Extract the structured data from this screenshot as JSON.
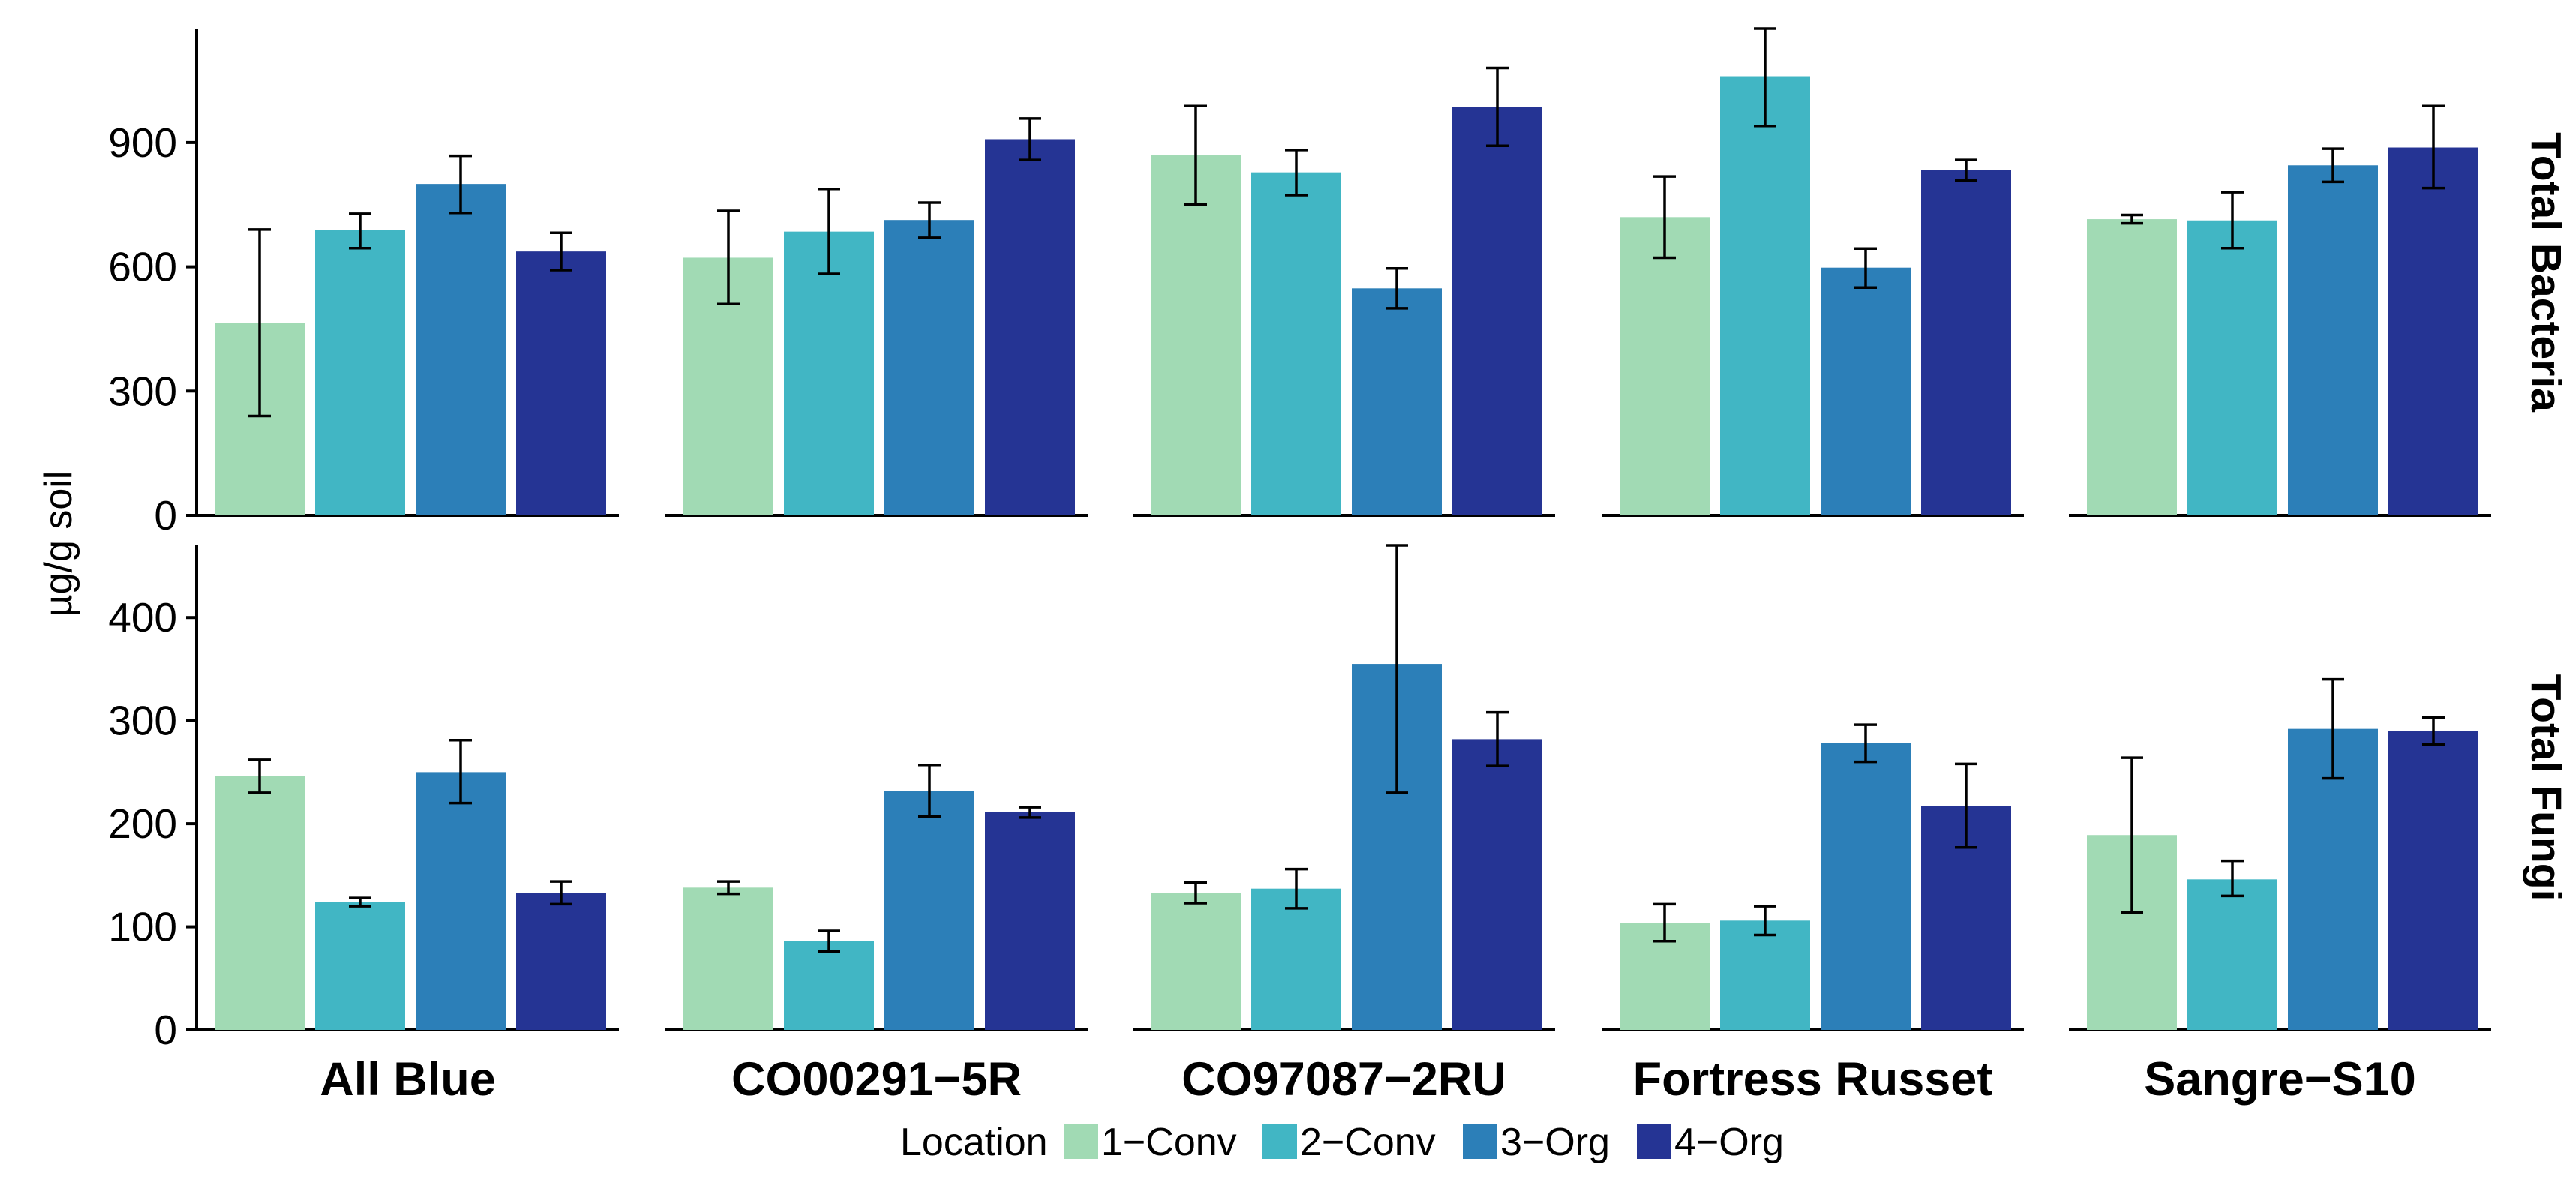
{
  "chart_data": {
    "type": "bar",
    "ylabel": "µg/g soil",
    "legend": {
      "title": "Location",
      "placement": "bottom",
      "entries": [
        "1−Conv",
        "2−Conv",
        "3−Org",
        "4−Org"
      ]
    },
    "grid": false,
    "colors": {
      "1−Conv": "#a1dab4",
      "2−Conv": "#41b6c4",
      "3−Org": "#2c7fb8",
      "4−Org": "#253494"
    },
    "categories": [
      "All Blue",
      "CO00291−5R",
      "CO97087−2RU",
      "Fortress Russet",
      "Sangre−S10"
    ],
    "rows": [
      {
        "label": "Total Bacteria",
        "ylim": [
          0,
          1175
        ],
        "yticks": [
          0,
          300,
          600,
          900
        ],
        "series": [
          {
            "name": "1−Conv",
            "values": [
              465,
              622,
              869,
              720,
              715
            ],
            "err_low": [
              240,
              510,
              750,
              622,
              705
            ],
            "err_high": [
              690,
              735,
              988,
              818,
              725
            ]
          },
          {
            "name": "2−Conv",
            "values": [
              688,
              685,
              828,
              1060,
              712
            ],
            "err_low": [
              645,
              583,
              773,
              940,
              645
            ],
            "err_high": [
              728,
              788,
              882,
              1175,
              780
            ]
          },
          {
            "name": "3−Org",
            "values": [
              800,
              713,
              548,
              598,
              845
            ],
            "err_low": [
              730,
              670,
              500,
              550,
              805
            ],
            "err_high": [
              868,
              755,
              596,
              644,
              885
            ]
          },
          {
            "name": "4−Org",
            "values": [
              637,
              908,
              985,
              833,
              888
            ],
            "err_low": [
              592,
              858,
              892,
              808,
              790
            ],
            "err_high": [
              682,
              958,
              1080,
              858,
              988
            ]
          }
        ]
      },
      {
        "label": "Total Fungi",
        "ylim": [
          0,
          470
        ],
        "yticks": [
          0,
          100,
          200,
          300,
          400
        ],
        "series": [
          {
            "name": "1−Conv",
            "values": [
              246,
              138,
              133,
              104,
              189
            ],
            "err_low": [
              230,
              132,
              123,
              86,
              114
            ],
            "err_high": [
              262,
              144,
              143,
              122,
              264
            ]
          },
          {
            "name": "2−Conv",
            "values": [
              124,
              86,
              137,
              106,
              146
            ],
            "err_low": [
              120,
              76,
              118,
              92,
              130
            ],
            "err_high": [
              128,
              96,
              156,
              120,
              164
            ]
          },
          {
            "name": "3−Org",
            "values": [
              250,
              232,
              355,
              278,
              292
            ],
            "err_low": [
              220,
              207,
              230,
              260,
              244
            ],
            "err_high": [
              281,
              257,
              470,
              296,
              340
            ]
          },
          {
            "name": "4−Org",
            "values": [
              133,
              211,
              282,
              217,
              290
            ],
            "err_low": [
              122,
              206,
              256,
              177,
              277
            ],
            "err_high": [
              144,
              216,
              308,
              258,
              303
            ]
          }
        ]
      }
    ]
  }
}
